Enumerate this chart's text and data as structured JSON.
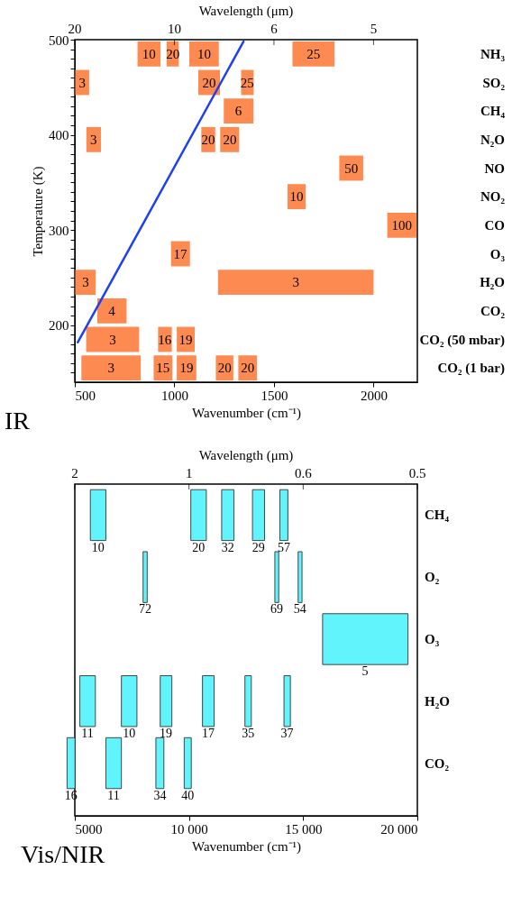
{
  "chart_data": [
    {
      "type": "bar",
      "orientation": "horizontal",
      "title": "IR",
      "xlabel": "Wavenumber (cm⁻¹)",
      "x2label": "Wavelength (μm)",
      "categories": [
        "NH₃",
        "SO₂",
        "CH₄",
        "N₂O",
        "NO",
        "NO₂",
        "CO",
        "O₃",
        "H₂O",
        "CO₂",
        "CO₂ (50 mbar)",
        "CO₂ (1 bar)"
      ],
      "xlim": [
        500,
        2220
      ],
      "xticks": [
        500,
        1000,
        1500,
        2000
      ],
      "series": [
        {
          "color": "#fd8a50",
          "base": [
            815,
            502,
            1248,
            558,
            1828,
            1568,
            2069,
            983,
            502,
            613,
            557,
            533
          ],
          "values": [
            115,
            70,
            149,
            73,
            120,
            91,
            146,
            95,
            103,
            147,
            266,
            298
          ]
        },
        {
          "color": "#fd8a50",
          "base": [
            961,
            1120,
            null,
            1135,
            null,
            null,
            null,
            null,
            1219,
            null,
            918,
            896
          ],
          "values": [
            61,
            109,
            null,
            70,
            null,
            null,
            null,
            null,
            781,
            null,
            69,
            94
          ]
        },
        {
          "color": "#fd8a50",
          "base": [
            1075,
            1335,
            null,
            1230,
            null,
            null,
            null,
            null,
            null,
            null,
            1012,
            1012
          ],
          "values": [
            148,
            63,
            null,
            95,
            null,
            null,
            null,
            null,
            null,
            null,
            90,
            98
          ]
        },
        {
          "color": "#fd8a50",
          "base": [
            1593,
            null,
            null,
            null,
            null,
            null,
            null,
            null,
            null,
            null,
            null,
            1208
          ],
          "values": [
            211,
            null,
            null,
            null,
            null,
            null,
            null,
            null,
            null,
            null,
            null,
            88
          ]
        },
        {
          "color": "#fd8a50",
          "base": [
            null,
            null,
            null,
            null,
            null,
            null,
            null,
            null,
            null,
            null,
            null,
            1321
          ],
          "values": [
            null,
            null,
            null,
            null,
            null,
            null,
            null,
            null,
            null,
            null,
            null,
            94
          ]
        }
      ],
      "annotations": [
        {
          "text": "10",
          "x": 872,
          "y": "NH₃"
        },
        {
          "text": "20",
          "x": 992,
          "y": "NH₃"
        },
        {
          "text": "10",
          "x": 1149,
          "y": "NH₃"
        },
        {
          "text": "25",
          "x": 1698,
          "y": "NH₃"
        },
        {
          "text": "3",
          "x": 537,
          "y": "SO₂"
        },
        {
          "text": "20",
          "x": 1174,
          "y": "SO₂"
        },
        {
          "text": "25",
          "x": 1366,
          "y": "SO₂"
        },
        {
          "text": "6",
          "x": 1322,
          "y": "CH₄"
        },
        {
          "text": "3",
          "x": 594,
          "y": "N₂O"
        },
        {
          "text": "20",
          "x": 1170,
          "y": "N₂O"
        },
        {
          "text": "20",
          "x": 1278,
          "y": "N₂O"
        },
        {
          "text": "50",
          "x": 1888,
          "y": "NO"
        },
        {
          "text": "10",
          "x": 1614,
          "y": "NO₂"
        },
        {
          "text": "100",
          "x": 2142,
          "y": "CO"
        },
        {
          "text": "17",
          "x": 1030,
          "y": "O₃"
        },
        {
          "text": "3",
          "x": 554,
          "y": "H₂O"
        },
        {
          "text": "3",
          "x": 1610,
          "y": "H₂O"
        },
        {
          "text": "4",
          "x": 686,
          "y": "CO₂"
        },
        {
          "text": "3",
          "x": 690,
          "y": "CO₂ (50 mbar)"
        },
        {
          "text": "16",
          "x": 952,
          "y": "CO₂ (50 mbar)"
        },
        {
          "text": "19",
          "x": 1057,
          "y": "CO₂ (50 mbar)"
        },
        {
          "text": "3",
          "x": 682,
          "y": "CO₂ (1 bar)"
        },
        {
          "text": "15",
          "x": 943,
          "y": "CO₂ (1 bar)"
        },
        {
          "text": "19",
          "x": 1061,
          "y": "CO₂ (1 bar)"
        },
        {
          "text": "20",
          "x": 1252,
          "y": "CO₂ (1 bar)"
        },
        {
          "text": "20",
          "x": 1368,
          "y": "CO₂ (1 bar)"
        },
        "20",
        "10",
        "6",
        "5"
      ]
    },
    {
      "type": "line",
      "ylabel": "Temperature (K)",
      "tick_labels": "y",
      "xlim": [
        500,
        2220
      ],
      "xticks": [
        500,
        1000,
        1500,
        2000
      ],
      "ylim": [
        140,
        500
      ],
      "yticks": [
        {
          "value": 150,
          "label": null
        },
        {
          "value": 160,
          "label": null
        },
        {
          "value": 170,
          "label": null
        },
        {
          "value": 180,
          "label": null
        },
        {
          "value": 190,
          "label": null
        },
        200,
        {
          "value": 210,
          "label": null
        },
        {
          "value": 220,
          "label": null
        },
        {
          "value": 230,
          "label": null
        },
        {
          "value": 240,
          "label": null
        },
        {
          "value": 250,
          "label": null
        },
        {
          "value": 260,
          "label": null
        },
        {
          "value": 270,
          "label": null
        },
        {
          "value": 280,
          "label": null
        },
        {
          "value": 290,
          "label": null
        },
        300,
        {
          "value": 310,
          "label": null
        },
        {
          "value": 320,
          "label": null
        },
        {
          "value": 330,
          "label": null
        },
        {
          "value": 340,
          "label": null
        },
        {
          "value": 350,
          "label": null
        },
        {
          "value": 360,
          "label": null
        },
        {
          "value": 370,
          "label": null
        },
        {
          "value": 380,
          "label": null
        },
        {
          "value": 390,
          "label": null
        },
        400,
        {
          "value": 410,
          "label": null
        },
        {
          "value": 420,
          "label": null
        },
        {
          "value": 430,
          "label": null
        },
        {
          "value": 440,
          "label": null
        },
        {
          "value": 450,
          "label": null
        },
        {
          "value": 460,
          "label": null
        },
        {
          "value": 470,
          "label": null
        },
        {
          "value": 480,
          "label": null
        },
        {
          "value": 490,
          "label": null
        },
        500
      ],
      "series": [
        {
          "color": "#1f3ff2",
          "x": [
            515,
            1347
          ],
          "values": [
            182,
            498
          ]
        }
      ]
    },
    {
      "type": "bar",
      "orientation": "horizontal",
      "title": "Vis/NIR",
      "xlabel": "Wavenumber (cm⁻¹)",
      "x2label": "Wavelength (μm)",
      "categories": [
        "CH₄",
        "O₂",
        "O₃",
        "H₂O",
        "CO₂"
      ],
      "xlim": [
        5000,
        20000
      ],
      "xticks": [
        5000,
        {
          "value": 10000,
          "label": "10 000"
        },
        {
          "value": 15000,
          "label": "15 000"
        },
        {
          "value": 20000,
          "label": "20 000"
        }
      ],
      "series": [
        {
          "color": "#62f4fc",
          "base": [
            5680,
            7990,
            15850,
            5220,
            4660
          ],
          "values": [
            680,
            180,
            3740,
            680,
            350
          ]
        },
        {
          "color": "#62f4fc",
          "base": [
            10080,
            13760,
            null,
            7040,
            6360
          ],
          "values": [
            680,
            170,
            null,
            680,
            680
          ]
        },
        {
          "color": "#62f4fc",
          "base": [
            11430,
            14780,
            null,
            8740,
            8550
          ],
          "values": [
            540,
            170,
            null,
            510,
            350
          ]
        },
        {
          "color": "#62f4fc",
          "base": [
            12780,
            null,
            null,
            10590,
            9790
          ],
          "values": [
            530,
            null,
            null,
            510,
            310
          ]
        },
        {
          "color": "#62f4fc",
          "base": [
            13980,
            null,
            null,
            12450,
            null
          ],
          "values": [
            350,
            null,
            null,
            280,
            null
          ]
        },
        {
          "color": "#62f4fc",
          "base": [
            null,
            null,
            null,
            14160,
            null
          ],
          "values": [
            null,
            null,
            null,
            280,
            null
          ]
        }
      ],
      "annotations": [
        {
          "text": "10",
          "x": 6018,
          "y": "CH₄"
        },
        {
          "text": "20",
          "x": 10422,
          "y": "CH₄"
        },
        {
          "text": "32",
          "x": 11696,
          "y": "CH₄"
        },
        {
          "text": "29",
          "x": 13042,
          "y": "CH₄"
        },
        {
          "text": "57",
          "x": 14153,
          "y": "CH₄"
        },
        {
          "text": "72",
          "x": 8076,
          "y": "O₂"
        },
        {
          "text": "69",
          "x": 13843,
          "y": "O₂"
        },
        {
          "text": "54",
          "x": 14862,
          "y": "O₂"
        },
        {
          "text": "5",
          "x": 17714,
          "y": "O₃"
        },
        {
          "text": "11",
          "x": 5556,
          "y": "H₂O"
        },
        {
          "text": "10",
          "x": 7376,
          "y": "H₂O"
        },
        {
          "text": "19",
          "x": 8990,
          "y": "H₂O"
        },
        {
          "text": "17",
          "x": 10846,
          "y": "H₂O"
        },
        {
          "text": "35",
          "x": 12588,
          "y": "H₂O"
        },
        {
          "text": "37",
          "x": 14298,
          "y": "H₂O"
        },
        {
          "text": "16",
          "x": 4834,
          "y": "CO₂"
        },
        {
          "text": "11",
          "x": 6698,
          "y": "CO₂"
        },
        {
          "text": "34",
          "x": 8730,
          "y": "CO₂"
        },
        {
          "text": "40",
          "x": 9943,
          "y": "CO₂"
        },
        "2",
        "1",
        "0.6",
        "0.5"
      ]
    }
  ]
}
